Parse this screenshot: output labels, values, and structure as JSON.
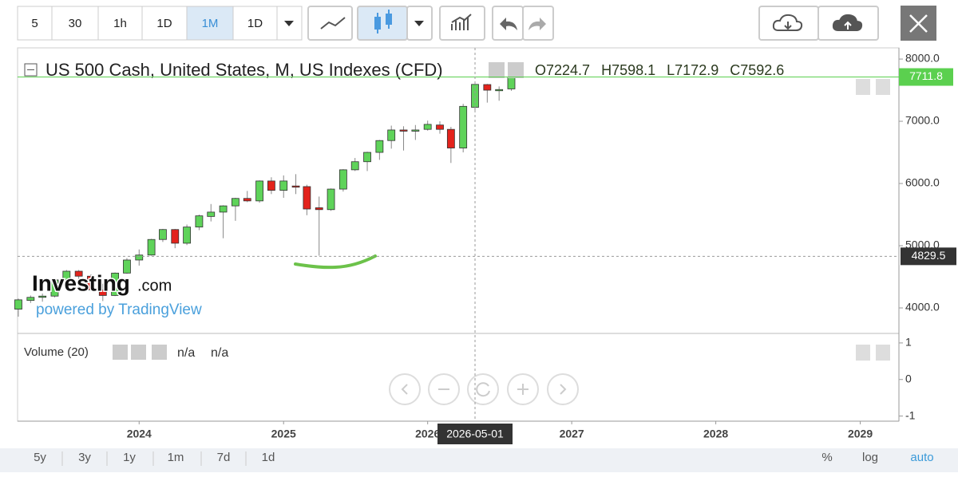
{
  "toolbar": {
    "intervals": [
      "5",
      "30",
      "1h",
      "1D",
      "1M",
      "1D"
    ],
    "active": 4
  },
  "chart_data": {
    "type": "candlestick",
    "title": "US 500 Cash, United States, M, US Indexes (CFD)",
    "ohlc_labels": [
      "O",
      "H",
      "L",
      "C"
    ],
    "x": [
      "2023-03-01",
      "2023-04-01",
      "2023-05-01",
      "2023-06-01",
      "2023-07-01",
      "2023-08-01",
      "2023-09-01",
      "2023-10-01",
      "2023-11-01",
      "2023-12-01",
      "2024-01-01",
      "2024-02-01",
      "2024-03-01",
      "2024-04-01",
      "2024-05-01",
      "2024-06-01",
      "2024-07-01",
      "2024-08-01",
      "2024-09-01",
      "2024-10-01",
      "2024-11-01",
      "2024-12-01",
      "2025-01-01",
      "2025-02-01",
      "2025-03-01",
      "2025-04-01",
      "2025-05-01",
      "2025-06-01",
      "2025-07-01",
      "2025-08-01",
      "2025-09-01",
      "2025-10-01",
      "2025-11-01",
      "2025-12-01",
      "2026-01-01",
      "2026-02-01",
      "2026-03-01",
      "2026-04-01",
      "2026-05-01",
      "2026-06-01",
      "2026-07-01",
      "2026-08-01"
    ],
    "open": [
      3980,
      4120,
      4170,
      4190,
      4450,
      4590,
      4510,
      4290,
      4200,
      4560,
      4770,
      4850,
      5100,
      5260,
      5040,
      5300,
      5470,
      5540,
      5640,
      5760,
      5720,
      6040,
      5890,
      5960,
      5950,
      5610,
      5580,
      5910,
      6220,
      6350,
      6500,
      6690,
      6860,
      6850,
      6870,
      6940,
      6870,
      6570,
      7224.7,
      7590,
      7500,
      7520
    ],
    "high": [
      4150,
      4200,
      4230,
      4460,
      4610,
      4610,
      4540,
      4390,
      4570,
      4800,
      4940,
      5110,
      5270,
      5270,
      5340,
      5500,
      5670,
      5650,
      5770,
      5880,
      6050,
      6100,
      6130,
      6150,
      5980,
      5790,
      5920,
      6230,
      6410,
      6510,
      6700,
      6930,
      6920,
      6940,
      7010,
      7000,
      6910,
      7280,
      7598.1,
      7600,
      7560,
      7730
    ],
    "low": [
      3860,
      4080,
      4100,
      4170,
      4400,
      4340,
      4270,
      4110,
      4190,
      4550,
      4680,
      4840,
      5060,
      4960,
      5010,
      5250,
      5390,
      5120,
      5400,
      5700,
      5690,
      5830,
      5770,
      5830,
      5490,
      4840,
      5560,
      5870,
      6200,
      6200,
      6380,
      6560,
      6530,
      6700,
      6850,
      6800,
      6330,
      6500,
      7172.9,
      7300,
      7330,
      7490
    ],
    "close": [
      4130,
      4170,
      4190,
      4450,
      4590,
      4510,
      4290,
      4200,
      4560,
      4770,
      4850,
      5100,
      5260,
      5040,
      5300,
      5480,
      5540,
      5640,
      5760,
      5720,
      6040,
      5890,
      6040,
      5950,
      5590,
      5580,
      5910,
      6220,
      6350,
      6500,
      6690,
      6860,
      6850,
      6860,
      6950,
      6870,
      6570,
      7240,
      7592.6,
      7500,
      7510,
      7711.8
    ],
    "up_color": "#5fd35a",
    "down_color": "#e3231c",
    "last_color": "#5bd04f",
    "hover_index": 38,
    "crosshair": {
      "x": "2026-05-01",
      "y": 4829.5
    },
    "xlim": [
      "2023-02-27",
      "2029-04-09"
    ],
    "xticks": [
      {
        "value": "2024-01-01",
        "label": "2024"
      },
      {
        "value": "2025-01-01",
        "label": "2025"
      },
      {
        "value": "2026-01-01",
        "label": "2026"
      },
      {
        "value": "2027-01-01",
        "label": "2027"
      },
      {
        "value": "2028-01-01",
        "label": "2028"
      },
      {
        "value": "2029-01-01",
        "label": "2029"
      }
    ],
    "ylim": [
      3590,
      8180
    ],
    "yticks": [
      {
        "value": 4000,
        "label": "4000.0"
      },
      {
        "value": 5000,
        "label": "5000.0"
      },
      {
        "value": 6000,
        "label": "6000.0"
      },
      {
        "value": 7000,
        "label": "7000.0"
      },
      {
        "value": 8000,
        "label": "8000.0"
      }
    ],
    "grid": false
  },
  "volume_pane": {
    "title": "Volume (20)",
    "readouts": [
      "n/a",
      "n/a"
    ],
    "ylim": [
      -1.14,
      1.26
    ],
    "yticks": [
      1,
      0,
      -1
    ]
  },
  "watermark": {
    "brand": "Investing",
    "domain": ".com",
    "tagline": "powered by TradingView"
  },
  "range_bar": {
    "ranges": [
      "5y",
      "3y",
      "1y",
      "1m",
      "7d",
      "1d"
    ],
    "options": [
      "%",
      "log",
      "auto"
    ]
  }
}
